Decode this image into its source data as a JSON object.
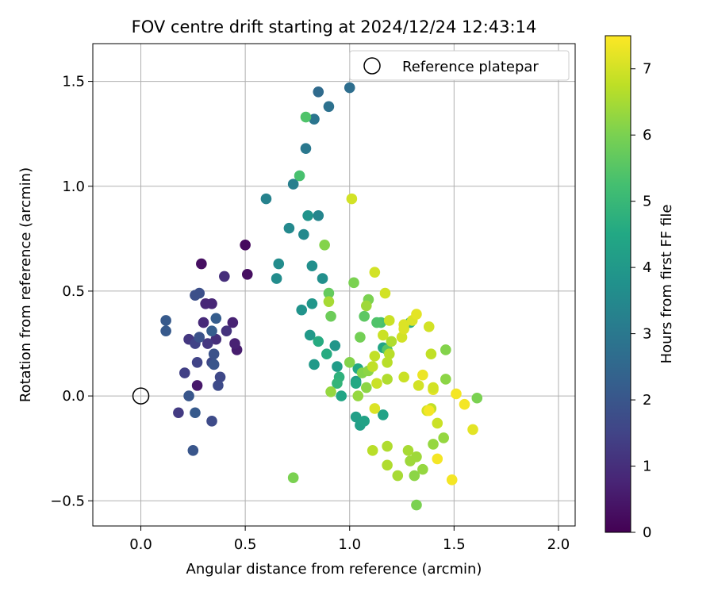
{
  "chart_data": {
    "type": "scatter",
    "title": "FOV centre drift starting at 2024/12/24 12:43:14",
    "xlabel": "Angular distance from reference (arcmin)",
    "ylabel": "Rotation from reference (arcmin)",
    "xlim": [
      -0.23,
      2.08
    ],
    "ylim": [
      -0.62,
      1.68
    ],
    "xticks": [
      "0.0",
      "0.5",
      "1.0",
      "1.5",
      "2.0"
    ],
    "xtick_values": [
      0,
      0.5,
      1.0,
      1.5,
      2.0
    ],
    "yticks": [
      "−0.5",
      "0.0",
      "0.5",
      "1.0",
      "1.5"
    ],
    "ytick_values": [
      -0.5,
      0,
      0.5,
      1.0,
      1.5
    ],
    "grid": true,
    "legend": {
      "position": "top-right",
      "entries": [
        "Reference platepar"
      ]
    },
    "reference_point": {
      "x": 0.0,
      "y": 0.0,
      "label": "Reference platepar"
    },
    "colorbar": {
      "label": "Hours from first FF file",
      "range": [
        0,
        7.5
      ],
      "ticks": [
        "0",
        "1",
        "2",
        "3",
        "4",
        "5",
        "6",
        "7"
      ],
      "tick_values": [
        0,
        1,
        2,
        3,
        4,
        5,
        6,
        7
      ],
      "colormap": "viridis"
    },
    "points": [
      {
        "x": 0.5,
        "y": 0.72,
        "c": 0.2
      },
      {
        "x": 0.51,
        "y": 0.58,
        "c": 0.3
      },
      {
        "x": 0.29,
        "y": 0.63,
        "c": 0.3
      },
      {
        "x": 0.27,
        "y": 0.05,
        "c": 0.5
      },
      {
        "x": 0.46,
        "y": 0.22,
        "c": 0.6
      },
      {
        "x": 0.45,
        "y": 0.25,
        "c": 0.7
      },
      {
        "x": 0.44,
        "y": 0.35,
        "c": 0.7
      },
      {
        "x": 0.34,
        "y": 0.44,
        "c": 0.8
      },
      {
        "x": 0.31,
        "y": 0.44,
        "c": 0.8
      },
      {
        "x": 0.3,
        "y": 0.35,
        "c": 0.9
      },
      {
        "x": 0.36,
        "y": 0.27,
        "c": 1.0
      },
      {
        "x": 0.4,
        "y": 0.57,
        "c": 1.0
      },
      {
        "x": 0.41,
        "y": 0.31,
        "c": 1.1
      },
      {
        "x": 0.32,
        "y": 0.25,
        "c": 1.2
      },
      {
        "x": 0.23,
        "y": 0.27,
        "c": 1.2
      },
      {
        "x": 0.18,
        "y": -0.08,
        "c": 1.3
      },
      {
        "x": 0.21,
        "y": 0.11,
        "c": 1.4
      },
      {
        "x": 0.26,
        "y": 0.25,
        "c": 1.5
      },
      {
        "x": 0.27,
        "y": 0.16,
        "c": 1.5
      },
      {
        "x": 0.34,
        "y": 0.16,
        "c": 1.6
      },
      {
        "x": 0.38,
        "y": 0.09,
        "c": 1.6
      },
      {
        "x": 0.37,
        "y": 0.05,
        "c": 1.7
      },
      {
        "x": 0.34,
        "y": -0.12,
        "c": 1.7
      },
      {
        "x": 0.26,
        "y": 0.48,
        "c": 1.8
      },
      {
        "x": 0.28,
        "y": 0.49,
        "c": 1.8
      },
      {
        "x": 0.28,
        "y": 0.28,
        "c": 1.9
      },
      {
        "x": 0.35,
        "y": 0.2,
        "c": 1.9
      },
      {
        "x": 0.35,
        "y": 0.15,
        "c": 2.0
      },
      {
        "x": 0.23,
        "y": 0.0,
        "c": 2.0
      },
      {
        "x": 0.25,
        "y": -0.26,
        "c": 2.0
      },
      {
        "x": 0.26,
        "y": -0.08,
        "c": 2.1
      },
      {
        "x": 0.12,
        "y": 0.36,
        "c": 2.1
      },
      {
        "x": 0.12,
        "y": 0.31,
        "c": 2.1
      },
      {
        "x": 0.34,
        "y": 0.31,
        "c": 2.2
      },
      {
        "x": 0.36,
        "y": 0.37,
        "c": 2.2
      },
      {
        "x": 0.85,
        "y": 1.45,
        "c": 2.6
      },
      {
        "x": 1.0,
        "y": 1.47,
        "c": 2.7
      },
      {
        "x": 0.9,
        "y": 1.38,
        "c": 2.8
      },
      {
        "x": 0.83,
        "y": 1.32,
        "c": 2.9
      },
      {
        "x": 0.79,
        "y": 1.18,
        "c": 3.0
      },
      {
        "x": 0.73,
        "y": 1.01,
        "c": 3.2
      },
      {
        "x": 0.6,
        "y": 0.94,
        "c": 3.3
      },
      {
        "x": 0.85,
        "y": 0.86,
        "c": 3.4
      },
      {
        "x": 0.71,
        "y": 0.8,
        "c": 3.5
      },
      {
        "x": 0.78,
        "y": 0.77,
        "c": 3.5
      },
      {
        "x": 0.66,
        "y": 0.63,
        "c": 3.6
      },
      {
        "x": 0.65,
        "y": 0.56,
        "c": 3.6
      },
      {
        "x": 0.82,
        "y": 0.62,
        "c": 3.7
      },
      {
        "x": 0.87,
        "y": 0.56,
        "c": 3.7
      },
      {
        "x": 0.8,
        "y": 0.86,
        "c": 3.8
      },
      {
        "x": 0.77,
        "y": 0.41,
        "c": 3.8
      },
      {
        "x": 0.82,
        "y": 0.44,
        "c": 3.9
      },
      {
        "x": 0.93,
        "y": 0.24,
        "c": 3.9
      },
      {
        "x": 0.81,
        "y": 0.29,
        "c": 4.0
      },
      {
        "x": 0.83,
        "y": 0.15,
        "c": 4.0
      },
      {
        "x": 0.94,
        "y": 0.14,
        "c": 4.1
      },
      {
        "x": 1.03,
        "y": 0.07,
        "c": 4.1
      },
      {
        "x": 1.03,
        "y": -0.1,
        "c": 4.2
      },
      {
        "x": 1.05,
        "y": -0.14,
        "c": 4.2
      },
      {
        "x": 1.07,
        "y": -0.12,
        "c": 4.3
      },
      {
        "x": 1.16,
        "y": -0.09,
        "c": 4.3
      },
      {
        "x": 1.16,
        "y": 0.23,
        "c": 4.4
      },
      {
        "x": 0.96,
        "y": 0.0,
        "c": 4.4
      },
      {
        "x": 1.03,
        "y": 0.06,
        "c": 4.5
      },
      {
        "x": 1.04,
        "y": 0.13,
        "c": 4.5
      },
      {
        "x": 0.85,
        "y": 0.26,
        "c": 4.6
      },
      {
        "x": 0.89,
        "y": 0.2,
        "c": 4.6
      },
      {
        "x": 1.29,
        "y": 0.35,
        "c": 4.7
      },
      {
        "x": 0.95,
        "y": 0.09,
        "c": 4.8
      },
      {
        "x": 0.94,
        "y": 0.06,
        "c": 4.9
      },
      {
        "x": 0.76,
        "y": 1.05,
        "c": 5.3
      },
      {
        "x": 0.79,
        "y": 1.33,
        "c": 5.4
      },
      {
        "x": 1.15,
        "y": 0.35,
        "c": 5.3
      },
      {
        "x": 1.13,
        "y": 0.35,
        "c": 5.4
      },
      {
        "x": 1.18,
        "y": 0.22,
        "c": 5.5
      },
      {
        "x": 1.07,
        "y": 0.38,
        "c": 5.6
      },
      {
        "x": 0.9,
        "y": 0.49,
        "c": 5.7
      },
      {
        "x": 0.91,
        "y": 0.38,
        "c": 5.8
      },
      {
        "x": 1.05,
        "y": 0.28,
        "c": 5.9
      },
      {
        "x": 1.09,
        "y": 0.46,
        "c": 6.0
      },
      {
        "x": 1.02,
        "y": 0.54,
        "c": 6.0
      },
      {
        "x": 1.0,
        "y": 0.16,
        "c": 6.1
      },
      {
        "x": 1.06,
        "y": 0.11,
        "c": 6.1
      },
      {
        "x": 1.09,
        "y": 0.12,
        "c": 6.2
      },
      {
        "x": 1.08,
        "y": 0.04,
        "c": 6.2
      },
      {
        "x": 1.04,
        "y": 0.0,
        "c": 6.3
      },
      {
        "x": 0.91,
        "y": 0.02,
        "c": 6.3
      },
      {
        "x": 0.73,
        "y": -0.39,
        "c": 6.0
      },
      {
        "x": 0.88,
        "y": 0.72,
        "c": 6.1
      },
      {
        "x": 0.9,
        "y": 0.45,
        "c": 6.5
      },
      {
        "x": 1.61,
        "y": -0.01,
        "c": 6.0
      },
      {
        "x": 1.46,
        "y": 0.22,
        "c": 6.1
      },
      {
        "x": 1.46,
        "y": 0.08,
        "c": 6.2
      },
      {
        "x": 1.45,
        "y": -0.2,
        "c": 6.3
      },
      {
        "x": 1.4,
        "y": -0.23,
        "c": 6.3
      },
      {
        "x": 1.32,
        "y": -0.52,
        "c": 6.0
      },
      {
        "x": 1.31,
        "y": -0.38,
        "c": 6.2
      },
      {
        "x": 1.35,
        "y": -0.35,
        "c": 6.3
      },
      {
        "x": 1.32,
        "y": -0.29,
        "c": 6.4
      },
      {
        "x": 1.29,
        "y": -0.31,
        "c": 6.4
      },
      {
        "x": 1.28,
        "y": -0.26,
        "c": 6.5
      },
      {
        "x": 1.23,
        "y": -0.38,
        "c": 6.5
      },
      {
        "x": 1.18,
        "y": -0.33,
        "c": 6.6
      },
      {
        "x": 1.18,
        "y": -0.24,
        "c": 6.6
      },
      {
        "x": 1.11,
        "y": -0.26,
        "c": 6.7
      },
      {
        "x": 1.18,
        "y": 0.08,
        "c": 6.6
      },
      {
        "x": 1.18,
        "y": 0.16,
        "c": 6.7
      },
      {
        "x": 1.19,
        "y": 0.2,
        "c": 6.7
      },
      {
        "x": 1.2,
        "y": 0.26,
        "c": 6.6
      },
      {
        "x": 1.12,
        "y": 0.19,
        "c": 6.8
      },
      {
        "x": 1.11,
        "y": 0.14,
        "c": 6.8
      },
      {
        "x": 1.13,
        "y": 0.06,
        "c": 6.9
      },
      {
        "x": 1.19,
        "y": 0.36,
        "c": 6.9
      },
      {
        "x": 1.16,
        "y": 0.29,
        "c": 6.9
      },
      {
        "x": 1.08,
        "y": 0.43,
        "c": 6.4
      },
      {
        "x": 1.12,
        "y": 0.59,
        "c": 7.0
      },
      {
        "x": 1.17,
        "y": 0.49,
        "c": 7.0
      },
      {
        "x": 1.01,
        "y": 0.94,
        "c": 7.0
      },
      {
        "x": 1.25,
        "y": 0.28,
        "c": 7.0
      },
      {
        "x": 1.26,
        "y": 0.32,
        "c": 7.1
      },
      {
        "x": 1.26,
        "y": 0.34,
        "c": 7.1
      },
      {
        "x": 1.3,
        "y": 0.36,
        "c": 7.1
      },
      {
        "x": 1.32,
        "y": 0.39,
        "c": 7.2
      },
      {
        "x": 1.38,
        "y": 0.33,
        "c": 7.0
      },
      {
        "x": 1.39,
        "y": 0.2,
        "c": 6.8
      },
      {
        "x": 1.33,
        "y": 0.05,
        "c": 7.0
      },
      {
        "x": 1.26,
        "y": 0.09,
        "c": 6.9
      },
      {
        "x": 1.35,
        "y": 0.1,
        "c": 7.3
      },
      {
        "x": 1.4,
        "y": 0.03,
        "c": 7.2
      },
      {
        "x": 1.4,
        "y": 0.04,
        "c": 7.0
      },
      {
        "x": 1.39,
        "y": -0.06,
        "c": 6.8
      },
      {
        "x": 1.37,
        "y": -0.07,
        "c": 7.0
      },
      {
        "x": 1.38,
        "y": -0.07,
        "c": 7.4
      },
      {
        "x": 1.42,
        "y": -0.13,
        "c": 6.9
      },
      {
        "x": 1.12,
        "y": -0.06,
        "c": 7.1
      },
      {
        "x": 1.42,
        "y": -0.3,
        "c": 7.4
      },
      {
        "x": 1.49,
        "y": -0.4,
        "c": 7.4
      },
      {
        "x": 1.51,
        "y": 0.01,
        "c": 7.4
      },
      {
        "x": 1.55,
        "y": -0.04,
        "c": 7.4
      },
      {
        "x": 1.59,
        "y": -0.16,
        "c": 7.2
      }
    ]
  }
}
